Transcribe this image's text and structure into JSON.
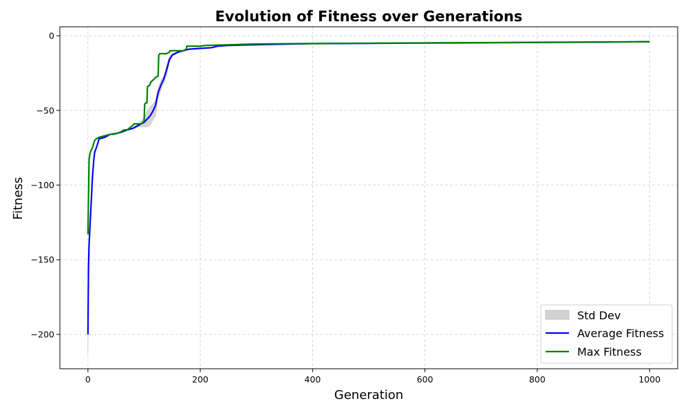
{
  "chart_data": {
    "type": "line",
    "title": "Evolution of Fitness over Generations",
    "xlabel": "Generation",
    "ylabel": "Fitness",
    "xlim": [
      -50,
      1050
    ],
    "ylim": [
      -223,
      6
    ],
    "xticks": [
      0,
      200,
      400,
      600,
      800,
      1000
    ],
    "yticks": [
      0,
      -50,
      -100,
      -150,
      -200
    ],
    "xtick_labels": [
      "0",
      "200",
      "400",
      "600",
      "800",
      "1000"
    ],
    "ytick_labels": [
      "0",
      "−50",
      "−100",
      "−150",
      "−200"
    ],
    "grid": true,
    "legend_position": "lower-right",
    "legend": [
      "Std Dev",
      "Average Fitness",
      "Max Fitness"
    ],
    "series": [
      {
        "name": "Average Fitness",
        "color": "#0000ff",
        "x": [
          0,
          1,
          2,
          4,
          6,
          8,
          10,
          12,
          15,
          20,
          30,
          40,
          50,
          60,
          70,
          80,
          90,
          100,
          105,
          110,
          115,
          120,
          125,
          130,
          135,
          140,
          145,
          150,
          160,
          170,
          180,
          200,
          220,
          230,
          250,
          300,
          400,
          500,
          600,
          700,
          800,
          900,
          1000
        ],
        "y": [
          -200,
          -155,
          -140,
          -125,
          -110,
          -95,
          -85,
          -78,
          -75,
          -69,
          -68,
          -66,
          -65.5,
          -64.5,
          -63,
          -62,
          -60,
          -58,
          -56,
          -54,
          -51,
          -47,
          -38,
          -33,
          -29,
          -23,
          -16,
          -13,
          -11,
          -10,
          -9,
          -8.5,
          -8,
          -7,
          -6.5,
          -6,
          -5.3,
          -5.1,
          -4.9,
          -4.7,
          -4.5,
          -4.3,
          -4
        ]
      },
      {
        "name": "Max Fitness",
        "color": "#008000",
        "x": [
          0,
          2,
          3,
          5,
          8,
          12,
          15,
          20,
          30,
          40,
          45,
          55,
          65,
          70,
          80,
          82,
          95,
          100,
          101,
          103,
          105,
          106,
          110,
          112,
          118,
          120,
          125,
          126,
          128,
          130,
          140,
          145,
          146,
          170,
          175,
          176,
          200,
          210,
          300,
          400,
          500,
          600,
          700,
          800,
          900,
          1000
        ],
        "y": [
          -133,
          -83,
          -80,
          -77,
          -75,
          -70,
          -69,
          -68,
          -67,
          -66,
          -66,
          -65,
          -63,
          -63,
          -60,
          -59,
          -59,
          -57,
          -46,
          -45,
          -45,
          -34,
          -33,
          -31,
          -29,
          -28,
          -27,
          -13,
          -12,
          -12,
          -12,
          -11,
          -10,
          -10,
          -9,
          -7,
          -7,
          -6.5,
          -5.5,
          -5.2,
          -5,
          -4.8,
          -4.6,
          -4.4,
          -4.2,
          -4
        ]
      }
    ],
    "std_dev": {
      "name": "Std Dev",
      "color": "#d3d3d3",
      "x": [
        0,
        1,
        2,
        4,
        6,
        8,
        10,
        12,
        15,
        20,
        30,
        40,
        50,
        60,
        70,
        80,
        90,
        100,
        105,
        110,
        115,
        120,
        125,
        130,
        135,
        140,
        145,
        150,
        160,
        170,
        180,
        200,
        220,
        230,
        250,
        300,
        400,
        500,
        600,
        700,
        800,
        900,
        1000
      ],
      "upper": [
        -188,
        -150,
        -136,
        -121,
        -107,
        -92,
        -83,
        -77,
        -74,
        -68.5,
        -67.5,
        -65.6,
        -65,
        -64,
        -62.5,
        -61.5,
        -59,
        -55,
        -51,
        -48,
        -46,
        -44,
        -35,
        -30,
        -27,
        -20,
        -14,
        -12,
        -10.5,
        -9.7,
        -8.8,
        -8.3,
        -7.8,
        -6.8,
        -6.3,
        -5.8,
        -5.2,
        -5,
        -4.8,
        -4.6,
        -4.4,
        -4.2,
        -3.9
      ],
      "lower": [
        -213,
        -160,
        -144,
        -129,
        -113,
        -98,
        -87,
        -79,
        -76,
        -69.5,
        -68.5,
        -66.4,
        -66,
        -65,
        -63.5,
        -62.5,
        -61,
        -61,
        -61,
        -60,
        -57,
        -54,
        -42,
        -36,
        -32,
        -26,
        -18,
        -14,
        -11.5,
        -10.3,
        -9.2,
        -8.7,
        -8.2,
        -7.2,
        -6.7,
        -6.2,
        -5.4,
        -5.2,
        -5,
        -4.8,
        -4.6,
        -4.4,
        -4.1
      ]
    }
  }
}
